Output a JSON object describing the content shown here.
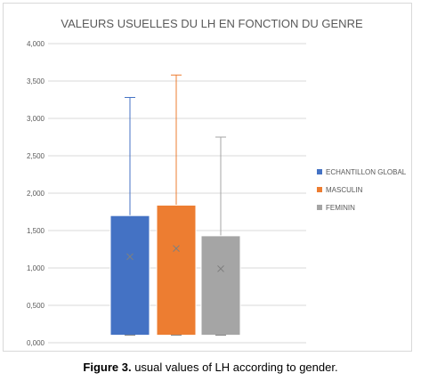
{
  "chart_data": {
    "type": "box",
    "title": "VALEURS USUELLES DU LH EN FONCTION DU GENRE",
    "ylim": [
      0,
      4
    ],
    "yticks": [
      "0,000",
      "0,500",
      "1,000",
      "1,500",
      "2,000",
      "2,500",
      "3,000",
      "3,500",
      "4,000"
    ],
    "grid": true,
    "legend_position": "right",
    "series": [
      {
        "name": "ECHANTILLON GLOBAL",
        "color": "#4472C4",
        "min": 0.1,
        "q1": 0.1,
        "q3": 1.7,
        "max": 3.28,
        "mean": 1.15
      },
      {
        "name": "MASCULIN",
        "color": "#ED7D31",
        "min": 0.1,
        "q1": 0.1,
        "q3": 1.84,
        "max": 3.58,
        "mean": 1.26
      },
      {
        "name": "FEMININ",
        "color": "#A5A5A5",
        "min": 0.1,
        "q1": 0.1,
        "q3": 1.43,
        "max": 2.75,
        "mean": 0.99
      }
    ]
  },
  "caption": {
    "label": "Figure 3.",
    "text": " usual values of LH according to gender."
  }
}
